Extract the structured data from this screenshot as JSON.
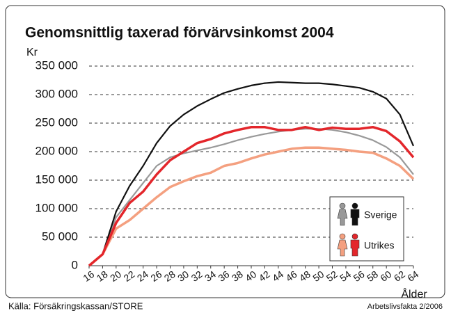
{
  "chart_data": {
    "type": "line",
    "title": "Genomsnittlig taxerad förvärvsinkomst 2004",
    "y_label": "Kr",
    "x_label": "Ålder",
    "source": "Källa: Försäkringskassan/STORE",
    "note": "Arbetslivsfakta 2/2006",
    "x": [
      16,
      18,
      20,
      22,
      24,
      26,
      28,
      30,
      32,
      34,
      36,
      38,
      40,
      42,
      44,
      46,
      48,
      50,
      52,
      54,
      56,
      58,
      60,
      62,
      64
    ],
    "series": [
      {
        "name": "Sverige",
        "lines": [
          {
            "color": "#999999",
            "values": [
              0,
              20000,
              85000,
              115000,
              145000,
              175000,
              190000,
              197000,
              202000,
              207000,
              213000,
              220000,
              226000,
              231000,
              235000,
              238000,
              240000,
              240000,
              238000,
              234000,
              228000,
              220000,
              208000,
              190000,
              160000
            ]
          },
          {
            "color": "#111111",
            "values": [
              0,
              20000,
              95000,
              140000,
              175000,
              215000,
              245000,
              265000,
              280000,
              292000,
              303000,
              310000,
              316000,
              320000,
              322000,
              321000,
              320000,
              320000,
              318000,
              315000,
              312000,
              305000,
              293000,
              265000,
              210000
            ]
          }
        ]
      },
      {
        "name": "Utrikes",
        "lines": [
          {
            "color": "#f4a080",
            "values": [
              0,
              20000,
              65000,
              80000,
              100000,
              120000,
              138000,
              148000,
              157000,
              163000,
              175000,
              180000,
              188000,
              195000,
              200000,
              205000,
              207000,
              207000,
              205000,
              203000,
              200000,
              198000,
              188000,
              175000,
              152000
            ]
          },
          {
            "color": "#e3262b",
            "values": [
              0,
              20000,
              75000,
              110000,
              130000,
              160000,
              185000,
              200000,
              215000,
              222000,
              232000,
              238000,
              243000,
              243000,
              238000,
              238000,
              243000,
              238000,
              242000,
              240000,
              240000,
              243000,
              236000,
              218000,
              190000
            ]
          }
        ]
      }
    ],
    "xlim": [
      16,
      64
    ],
    "xticks": [
      16,
      18,
      20,
      22,
      24,
      26,
      28,
      30,
      32,
      34,
      36,
      38,
      40,
      42,
      44,
      46,
      48,
      50,
      52,
      54,
      56,
      58,
      60,
      62,
      64
    ],
    "ylim": [
      0,
      350000
    ],
    "yticks": [
      0,
      {
        "value": 50000,
        "label": "50 000"
      },
      {
        "value": 100000,
        "label": "100 000"
      },
      {
        "value": 150000,
        "label": "150 000"
      },
      {
        "value": 200000,
        "label": "200 000"
      },
      {
        "value": 250000,
        "label": "250 000"
      },
      {
        "value": 300000,
        "label": "300 000"
      },
      {
        "value": 350000,
        "label": "350 000"
      }
    ],
    "grid": true
  }
}
